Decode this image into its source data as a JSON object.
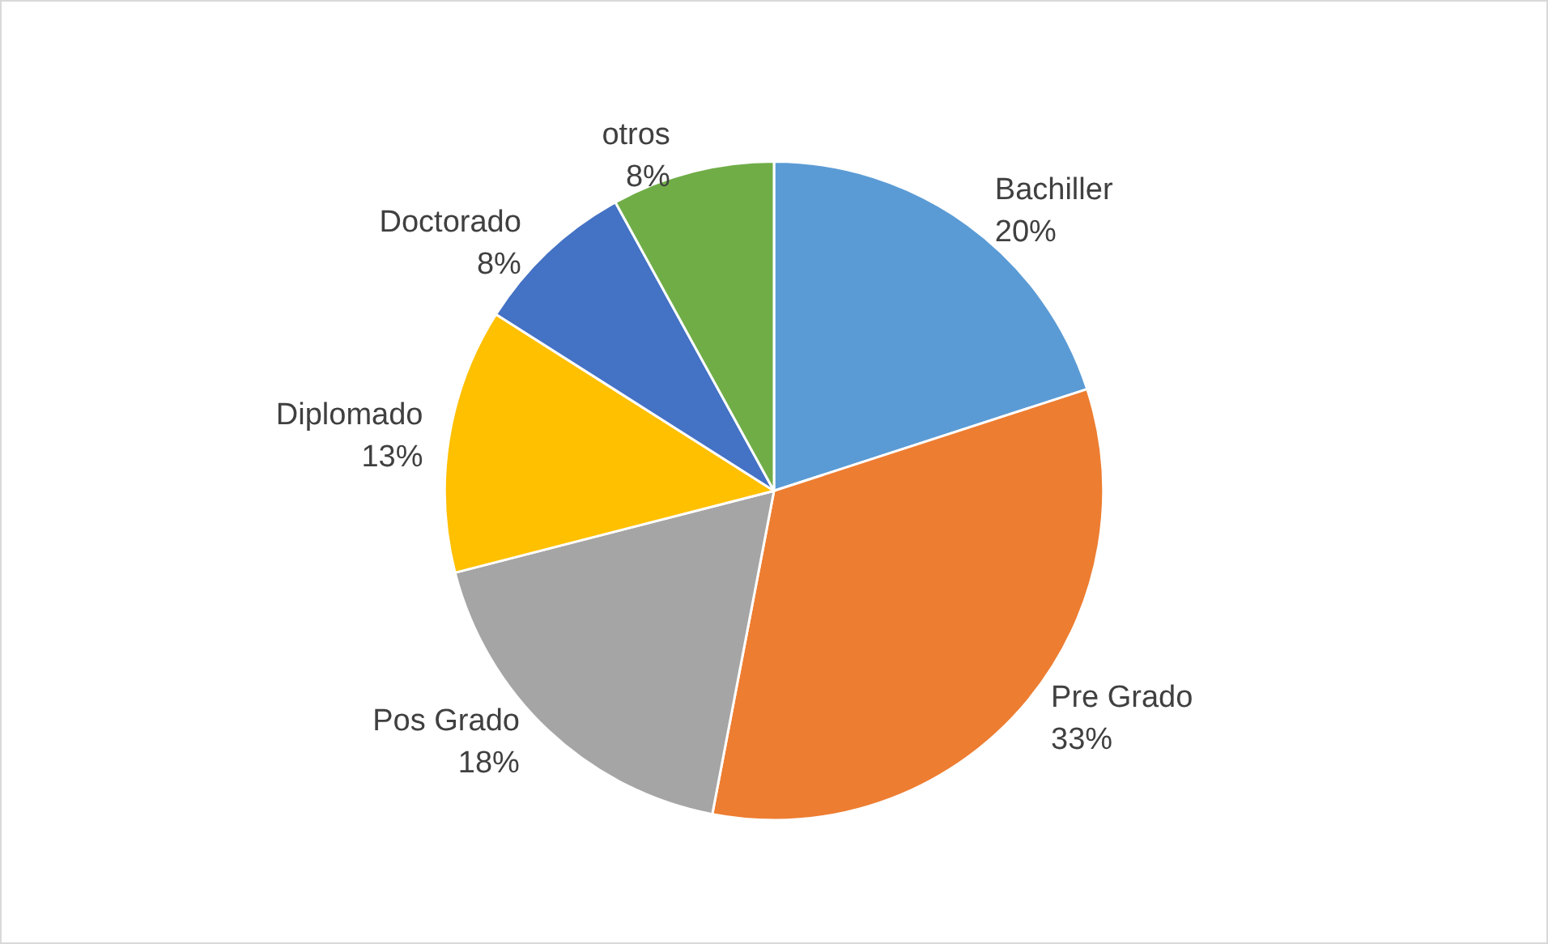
{
  "chart_data": {
    "type": "pie",
    "categories": [
      "Bachiller",
      "Pre Grado",
      "Pos Grado",
      "Diplomado",
      "Doctorado",
      "otros"
    ],
    "values": [
      20,
      33,
      18,
      13,
      8,
      8
    ],
    "value_labels": [
      "20%",
      "33%",
      "18%",
      "13%",
      "8%",
      "8%"
    ],
    "colors": [
      "#5b9bd5",
      "#ed7d31",
      "#a5a5a5",
      "#ffc000",
      "#4472c4",
      "#70ad47"
    ],
    "legend": false
  }
}
